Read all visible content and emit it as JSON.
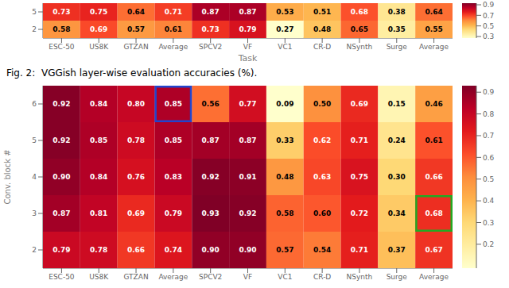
{
  "chart_data": [
    {
      "type": "heatmap",
      "x_label": "Task",
      "categories": [
        "ESC-50",
        "US8K",
        "GTZAN",
        "Average",
        "SPCV2",
        "VF",
        "VC1",
        "CR-D",
        "NSynth",
        "Surge",
        "Average"
      ],
      "rows": [
        "5",
        "2"
      ],
      "cells": [
        [
          0.73,
          0.75,
          0.64,
          0.71,
          0.87,
          0.87,
          0.53,
          0.51,
          0.68,
          0.38,
          0.64
        ],
        [
          0.58,
          0.69,
          0.57,
          0.61,
          0.73,
          0.79,
          0.27,
          0.48,
          0.65,
          0.35,
          0.55
        ]
      ],
      "value_labels": [
        [
          "0.73",
          "0.75",
          "0.64",
          "0.71",
          "0.87",
          "0.87",
          "0.53",
          "0.51",
          "0.68",
          "0.38",
          "0.64"
        ],
        [
          "0.58",
          "0.69",
          "0.57",
          "0.61",
          "0.73",
          "0.79",
          "0.27",
          "0.48",
          "0.65",
          "0.35",
          "0.55"
        ]
      ],
      "data_labels": true,
      "color": "YlOrRd",
      "colorbar": {
        "range": [
          0.27,
          0.93
        ],
        "ticks": [
          0.3,
          0.5,
          0.7,
          0.9
        ]
      },
      "annotations": [
        "Fig. 2:  VGGish layer-wise evaluation accuracies (%)."
      ]
    },
    {
      "type": "heatmap",
      "y_label": "Conv. block #",
      "categories": [
        "ESC-50",
        "US8K",
        "GTZAN",
        "Average",
        "SPCV2",
        "VF",
        "VC1",
        "CR-D",
        "NSynth",
        "Surge",
        "Average"
      ],
      "rows": [
        "6",
        "5",
        "4",
        "3",
        "2"
      ],
      "cells": [
        [
          0.92,
          0.84,
          0.8,
          0.85,
          0.56,
          0.77,
          0.09,
          0.5,
          0.69,
          0.15,
          0.46
        ],
        [
          0.92,
          0.85,
          0.78,
          0.85,
          0.87,
          0.87,
          0.33,
          0.62,
          0.71,
          0.24,
          0.61
        ],
        [
          0.9,
          0.84,
          0.76,
          0.83,
          0.92,
          0.91,
          0.48,
          0.63,
          0.75,
          0.3,
          0.66
        ],
        [
          0.87,
          0.81,
          0.69,
          0.79,
          0.93,
          0.92,
          0.58,
          0.6,
          0.72,
          0.34,
          0.68
        ],
        [
          0.79,
          0.78,
          0.66,
          0.74,
          0.9,
          0.9,
          0.57,
          0.54,
          0.71,
          0.37,
          0.67
        ]
      ],
      "value_labels": [
        [
          "0.92",
          "0.84",
          "0.80",
          "0.85",
          "0.56",
          "0.77",
          "0.09",
          "0.50",
          "0.69",
          "0.15",
          "0.46"
        ],
        [
          "0.92",
          "0.85",
          "0.78",
          "0.85",
          "0.87",
          "0.87",
          "0.33",
          "0.62",
          "0.71",
          "0.24",
          "0.61"
        ],
        [
          "0.90",
          "0.84",
          "0.76",
          "0.83",
          "0.92",
          "0.91",
          "0.48",
          "0.63",
          "0.75",
          "0.30",
          "0.66"
        ],
        [
          "0.87",
          "0.81",
          "0.69",
          "0.79",
          "0.93",
          "0.92",
          "0.58",
          "0.60",
          "0.72",
          "0.34",
          "0.68"
        ],
        [
          "0.79",
          "0.78",
          "0.66",
          "0.74",
          "0.90",
          "0.90",
          "0.57",
          "0.54",
          "0.71",
          "0.37",
          "0.67"
        ]
      ],
      "data_labels": true,
      "color": "YlOrRd",
      "colorbar": {
        "range": [
          0.09,
          0.93
        ],
        "ticks": [
          0.9,
          0.8,
          0.7,
          0.6,
          0.5,
          0.4,
          0.3,
          0.2
        ]
      },
      "highlights": [
        {
          "row": 0,
          "column": 3,
          "color": "#2244cc"
        },
        {
          "row": 3,
          "column": 10,
          "color": "#22aa22"
        }
      ]
    }
  ]
}
